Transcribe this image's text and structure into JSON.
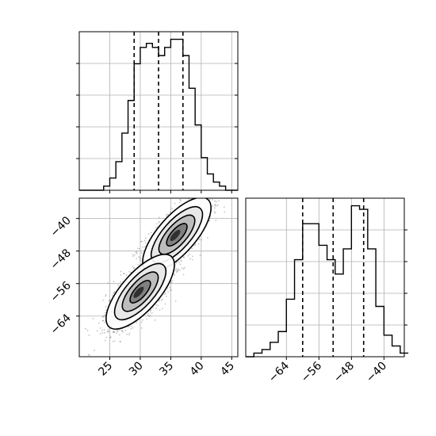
{
  "chart_data": {
    "type": "corner",
    "parameters": [
      "",
      ""
    ],
    "grid": true,
    "x_hist": {
      "xlim": [
        20,
        46
      ],
      "bin_edges": [
        20,
        21,
        22,
        23,
        24,
        25,
        26,
        27,
        28,
        29,
        30,
        31,
        32,
        33,
        34,
        35,
        36,
        37,
        38,
        39,
        40,
        41,
        42,
        43,
        44,
        45,
        46
      ],
      "counts": [
        0,
        0,
        0,
        0,
        1,
        3,
        7,
        14,
        22,
        31,
        35,
        36,
        35,
        33,
        35,
        37,
        37,
        33,
        25,
        16,
        8,
        4,
        2,
        1,
        0,
        0
      ],
      "quantiles": [
        29.0,
        33.0,
        37.0
      ],
      "xticks": [
        "25",
        "30",
        "35",
        "40",
        "45"
      ]
    },
    "y_hist": {
      "xlim": [
        -74,
        -35
      ],
      "bin_edges": [
        -74,
        -72,
        -70,
        -68,
        -66,
        -64,
        -62,
        -60,
        -58,
        -56,
        -54,
        -52,
        -50,
        -48,
        -46,
        -44,
        -42,
        -40,
        -38,
        -36,
        -34
      ],
      "counts": [
        0,
        1,
        2,
        4,
        7,
        16,
        27,
        37,
        37,
        31,
        27,
        23,
        30,
        42,
        41,
        30,
        14,
        6,
        3,
        1
      ],
      "quantiles": [
        -60.0,
        -52.5,
        -45.0
      ],
      "xticks": [
        "−64",
        "−56",
        "−48",
        "−40"
      ]
    },
    "scatter_2d": {
      "xlim": [
        20,
        46
      ],
      "ylim": [
        -74,
        -35
      ],
      "xticks": [
        "25",
        "30",
        "35",
        "40",
        "45"
      ],
      "yticks": [
        "−40",
        "−48",
        "−56",
        "−64"
      ],
      "clusters": [
        {
          "center": [
            36,
            -44
          ],
          "sx": 2.8,
          "sy": 4.6,
          "rho": 0.72,
          "n": 1400
        },
        {
          "center": [
            30,
            -58
          ],
          "sx": 2.8,
          "sy": 4.6,
          "rho": 0.72,
          "n": 1400
        }
      ]
    }
  }
}
